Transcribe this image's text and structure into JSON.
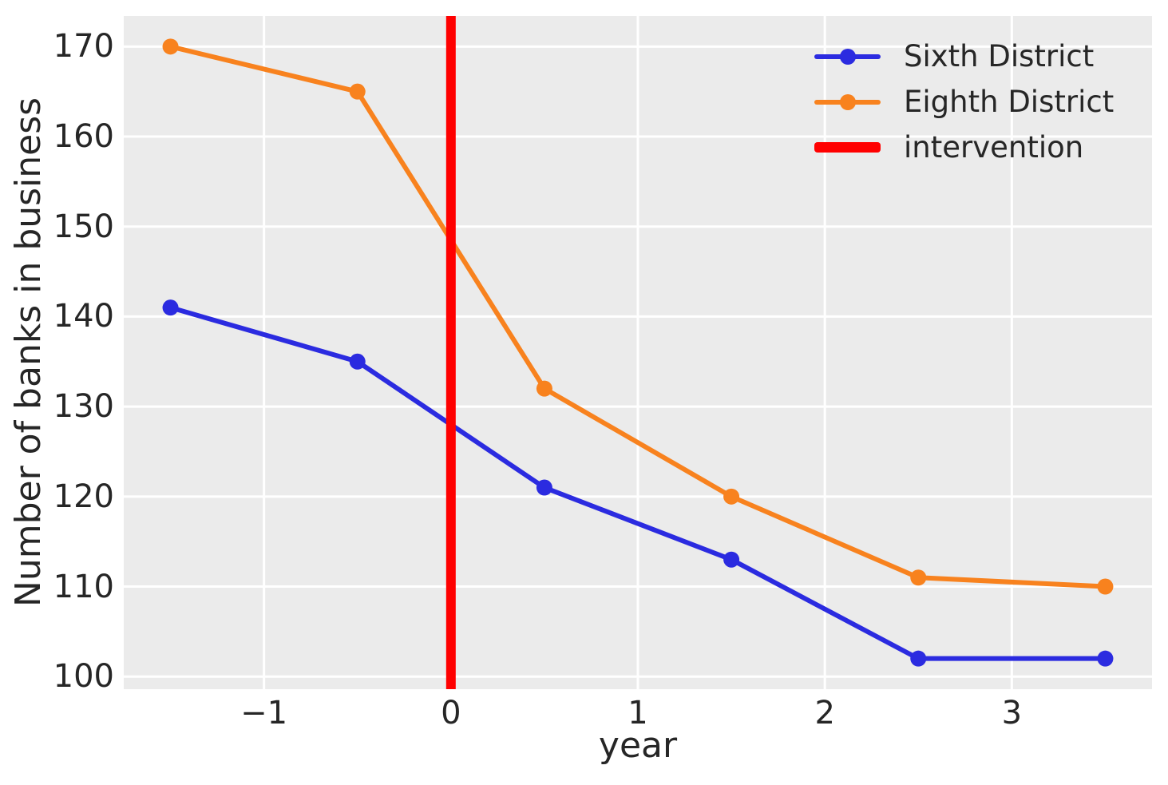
{
  "figure": {
    "background": "#ffffff",
    "plot_background": "#ebebeb",
    "grid_color": "#ffffff",
    "text_color": "#262626"
  },
  "chart_data": {
    "type": "line",
    "xlabel": "year",
    "ylabel": "Number of banks in business",
    "x": [
      -1.5,
      -0.5,
      0.5,
      1.5,
      2.5,
      3.5
    ],
    "series": [
      {
        "name": "Sixth District",
        "color": "#2b2be0",
        "marker": "circle",
        "values": [
          141,
          135,
          121,
          113,
          102,
          102
        ]
      },
      {
        "name": "Eighth District",
        "color": "#f8821e",
        "marker": "circle",
        "values": [
          170,
          165,
          132,
          120,
          111,
          110
        ]
      }
    ],
    "intervention": {
      "label": "intervention",
      "x": 0,
      "color": "#ff0000"
    },
    "xticks": [
      -1,
      0,
      1,
      2,
      3
    ],
    "xtick_labels": [
      "−1",
      "0",
      "1",
      "2",
      "3"
    ],
    "yticks": [
      100,
      110,
      120,
      130,
      140,
      150,
      160,
      170
    ],
    "ytick_labels": [
      "100",
      "110",
      "120",
      "130",
      "140",
      "150",
      "160",
      "170"
    ],
    "xlim": [
      -1.75,
      3.75
    ],
    "ylim": [
      98.6,
      173.4
    ],
    "grid": true,
    "legend_position": "upper right"
  }
}
